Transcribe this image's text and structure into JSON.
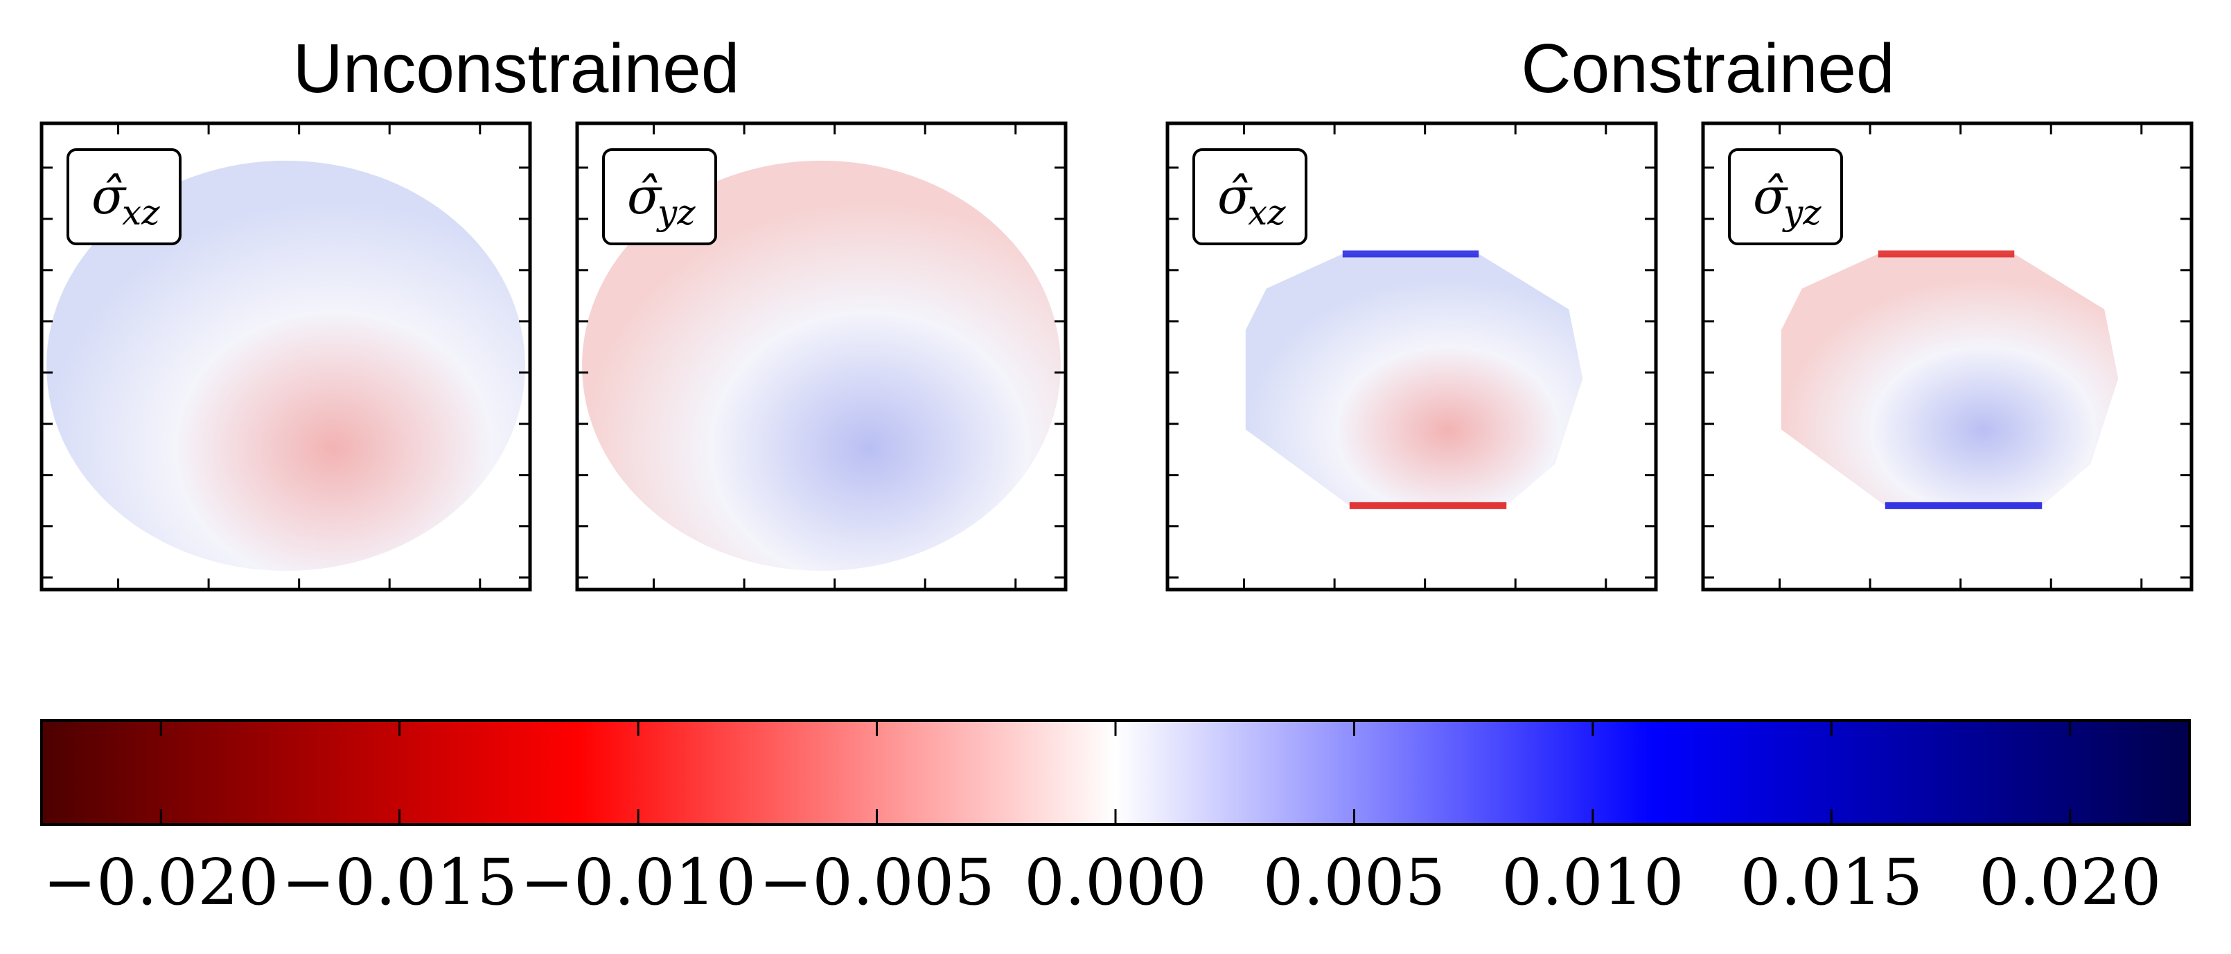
{
  "chart_data": {
    "type": "heatmap",
    "groups": [
      {
        "title": "Unconstrained",
        "panels": [
          {
            "label": "σ̂",
            "sub": "xz"
          },
          {
            "label": "σ̂",
            "sub": "yz"
          }
        ]
      },
      {
        "title": "Constrained",
        "panels": [
          {
            "label": "σ̂",
            "sub": "xz"
          },
          {
            "label": "σ̂",
            "sub": "yz"
          }
        ]
      }
    ],
    "colorbar": {
      "colormap": "seismic",
      "vmin": -0.0225,
      "vmax": 0.0225,
      "ticks": [
        -0.02,
        -0.015,
        -0.01,
        -0.005,
        0.0,
        0.005,
        0.01,
        0.015,
        0.02
      ],
      "tick_labels": [
        "−0.020",
        "−0.015",
        "−0.010",
        "−0.005",
        "0.000",
        "0.005",
        "0.010",
        "0.015",
        "0.020"
      ]
    },
    "colors": {
      "dark_red": "#800000",
      "red": "#ff0000",
      "white": "#ffffff",
      "blue": "#0000ff",
      "dark_blue": "#000050"
    }
  }
}
